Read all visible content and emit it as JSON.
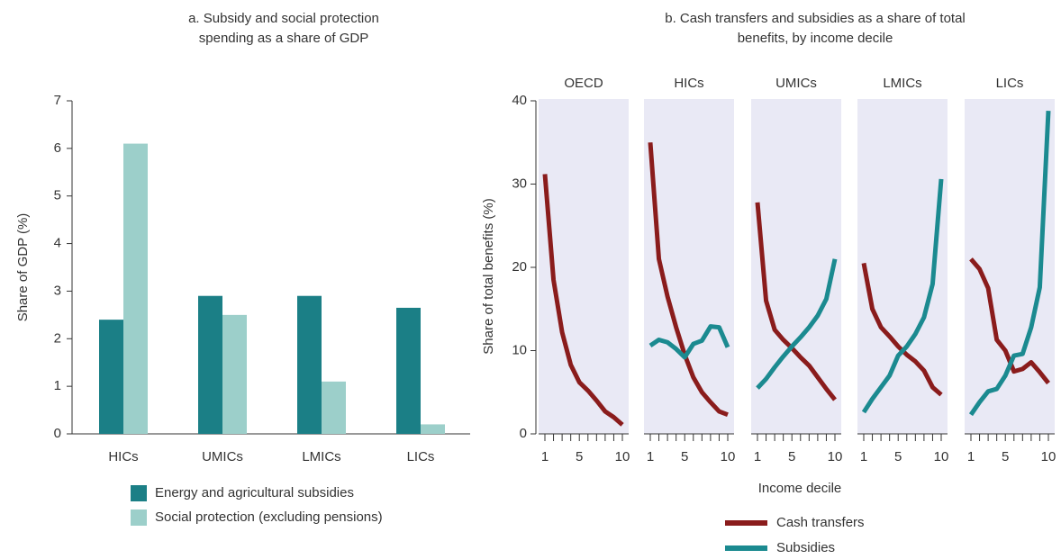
{
  "chart_data": [
    {
      "type": "bar",
      "title": "a. Subsidy and social protection spending as a share of GDP",
      "y_label": "Share of GDP (%)",
      "categories": [
        "HICs",
        "UMICs",
        "LMICs",
        "LICs"
      ],
      "series": [
        {
          "name": "Energy and agricultural subsidies",
          "color": "#1b7f86",
          "values": [
            2.4,
            2.9,
            2.9,
            2.65
          ]
        },
        {
          "name": "Social protection (excluding pensions)",
          "color": "#9ccfca",
          "values": [
            6.1,
            2.5,
            1.1,
            0.2
          ]
        }
      ],
      "ylim": [
        0,
        7
      ],
      "yticks": [
        0,
        1,
        2,
        3,
        4,
        5,
        6,
        7
      ]
    },
    {
      "type": "line",
      "title": "b. Cash transfers and subsidies as a share of total benefits, by income decile",
      "y_label": "Share of total benefits (%)",
      "x_label": "Income decile",
      "panels": [
        "OECD",
        "HICs",
        "UMICs",
        "LMICs",
        "LICs"
      ],
      "x": [
        1,
        2,
        3,
        4,
        5,
        6,
        7,
        8,
        9,
        10
      ],
      "xlim": [
        1,
        10
      ],
      "xticks": [
        1,
        5,
        10
      ],
      "ylim": [
        0,
        40
      ],
      "yticks": [
        0,
        10,
        20,
        30,
        40
      ],
      "panel_color": "#e9e9f5",
      "series": [
        {
          "name": "Cash transfers",
          "color": "#8a1c1c",
          "values": [
            [
              31.2,
              18.5,
              12.2,
              8.3,
              6.2,
              5.2,
              4.0,
              2.7,
              2.0,
              1.1
            ],
            [
              35.0,
              21.0,
              16.5,
              12.8,
              9.5,
              6.8,
              5.0,
              3.8,
              2.7,
              2.3
            ],
            [
              27.8,
              16.0,
              12.5,
              11.3,
              10.3,
              9.2,
              8.2,
              6.8,
              5.4,
              4.1
            ],
            [
              20.5,
              15.0,
              12.8,
              11.7,
              10.5,
              9.5,
              8.7,
              7.6,
              5.6,
              4.7
            ],
            [
              21.0,
              19.8,
              17.5,
              11.3,
              10.0,
              7.5,
              7.8,
              8.6,
              7.4,
              6.1
            ]
          ]
        },
        {
          "name": "Subsidies",
          "color": "#1b8a90",
          "values": [
            [
              null,
              null,
              null,
              null,
              null,
              null,
              null,
              null,
              null,
              null
            ],
            [
              10.6,
              11.3,
              11.0,
              10.2,
              9.2,
              10.8,
              11.2,
              12.9,
              12.8,
              10.4
            ],
            [
              5.5,
              6.6,
              8.0,
              9.3,
              10.5,
              11.6,
              12.8,
              14.2,
              16.2,
              21.0
            ],
            [
              2.6,
              4.2,
              5.6,
              7.0,
              9.4,
              10.5,
              12.0,
              14.0,
              18.0,
              30.6
            ],
            [
              2.3,
              3.8,
              5.1,
              5.4,
              7.0,
              9.4,
              9.6,
              12.8,
              17.6,
              38.8
            ]
          ]
        }
      ]
    }
  ]
}
